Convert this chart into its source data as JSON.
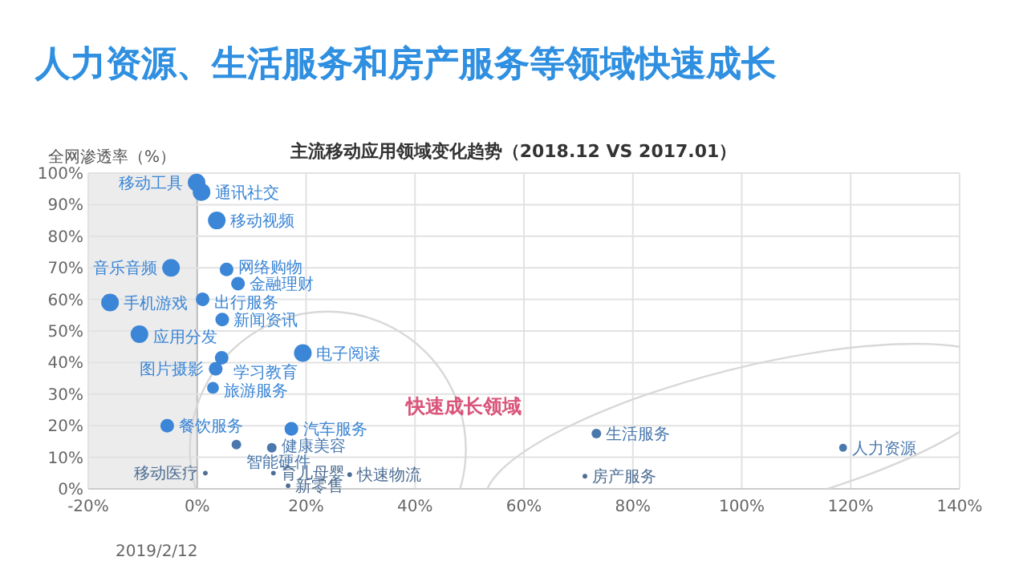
{
  "chart_data": {
    "type": "bubble",
    "title": "人力资源、生活服务和房产服务等领域快速成长",
    "subtitle": "主流移动应用领域变化趋势（2018.12  VS 2017.01）",
    "ylabel": "全网渗透率（%）",
    "xlim": [
      -20,
      140
    ],
    "ylim": [
      0,
      100
    ],
    "xticks": [
      {
        "value": -20,
        "label": "-20%"
      },
      {
        "value": 0,
        "label": "0%"
      },
      {
        "value": 20,
        "label": "20%"
      },
      {
        "value": 40,
        "label": "40%"
      },
      {
        "value": 60,
        "label": "60%"
      },
      {
        "value": 80,
        "label": "80%"
      },
      {
        "value": 100,
        "label": "100%"
      },
      {
        "value": 120,
        "label": "120%"
      },
      {
        "value": 140,
        "label": "140%"
      }
    ],
    "yticks": [
      {
        "value": 0,
        "label": "0%"
      },
      {
        "value": 10,
        "label": "10%"
      },
      {
        "value": 20,
        "label": "20%"
      },
      {
        "value": 30,
        "label": "30%"
      },
      {
        "value": 40,
        "label": "40%"
      },
      {
        "value": 50,
        "label": "50%"
      },
      {
        "value": 60,
        "label": "60%"
      },
      {
        "value": 70,
        "label": "70%"
      },
      {
        "value": 80,
        "label": "80%"
      },
      {
        "value": 90,
        "label": "90%"
      },
      {
        "value": 100,
        "label": "100%"
      }
    ],
    "grid": true,
    "legend": false,
    "marker": "circle",
    "bands": [
      {
        "axis": "x",
        "from": -20,
        "to": 0,
        "color": "#ececec"
      }
    ],
    "annotations": [
      "快速成长领域",
      "2019/2/12"
    ],
    "series": [
      {
        "name": "移动工具",
        "color": "#3b86d6",
        "x": [
          -0.1
        ],
        "values": [
          97
        ],
        "sizes": [
          1
        ]
      },
      {
        "name": "通讯社交",
        "color": "#3b86d6",
        "x": [
          0.8
        ],
        "values": [
          94
        ],
        "sizes": [
          1
        ]
      },
      {
        "name": "移动视频",
        "color": "#3b86d6",
        "x": [
          3.6
        ],
        "values": [
          85
        ],
        "sizes": [
          1
        ]
      },
      {
        "name": "音乐音频",
        "color": "#3b86d6",
        "x": [
          -4.8
        ],
        "values": [
          70
        ],
        "sizes": [
          1
        ]
      },
      {
        "name": "网络购物",
        "color": "#3b86d6",
        "x": [
          5.4
        ],
        "values": [
          69.5
        ],
        "sizes": [
          0.6
        ]
      },
      {
        "name": "金融理财",
        "color": "#3b86d6",
        "x": [
          7.5
        ],
        "values": [
          65
        ],
        "sizes": [
          0.6
        ]
      },
      {
        "name": "出行服务",
        "color": "#3b86d6",
        "x": [
          1.0
        ],
        "values": [
          60
        ],
        "sizes": [
          0.6
        ]
      },
      {
        "name": "手机游戏",
        "color": "#3b86d6",
        "x": [
          -16
        ],
        "values": [
          59
        ],
        "sizes": [
          1
        ]
      },
      {
        "name": "新闻资讯",
        "color": "#3b86d6",
        "x": [
          4.6
        ],
        "values": [
          53.6
        ],
        "sizes": [
          0.6
        ]
      },
      {
        "name": "应用分发",
        "color": "#3b86d6",
        "x": [
          -10.6
        ],
        "values": [
          49
        ],
        "sizes": [
          1
        ]
      },
      {
        "name": "电子阅读",
        "color": "#3b86d6",
        "x": [
          19.4
        ],
        "values": [
          43
        ],
        "sizes": [
          1
        ]
      },
      {
        "name": "学习教育",
        "color": "#3b86d6",
        "x": [
          4.5
        ],
        "values": [
          41.5
        ],
        "sizes": [
          0.6
        ]
      },
      {
        "name": "图片摄影",
        "color": "#3b86d6",
        "x": [
          3.4
        ],
        "values": [
          38
        ],
        "sizes": [
          0.6
        ]
      },
      {
        "name": "旅游服务",
        "color": "#3b86d6",
        "x": [
          2.9
        ],
        "values": [
          32
        ],
        "sizes": [
          0.45
        ]
      },
      {
        "name": "餐饮服务",
        "color": "#3b86d6",
        "x": [
          -5.5
        ],
        "values": [
          20
        ],
        "sizes": [
          0.6
        ]
      },
      {
        "name": "汽车服务",
        "color": "#3b86d6",
        "x": [
          17.3
        ],
        "values": [
          19
        ],
        "sizes": [
          0.6
        ]
      },
      {
        "name": "智能硬件",
        "color": "#4a78ad",
        "x": [
          7.2
        ],
        "values": [
          14
        ],
        "sizes": [
          0.3
        ]
      },
      {
        "name": "健康美容",
        "color": "#4a78ad",
        "x": [
          13.7
        ],
        "values": [
          13
        ],
        "sizes": [
          0.3
        ]
      },
      {
        "name": "移动医疗",
        "color": "#4d6d93",
        "x": [
          1.5
        ],
        "values": [
          5
        ],
        "sizes": [
          0.07
        ]
      },
      {
        "name": "育儿母婴",
        "color": "#4d6d93",
        "x": [
          14
        ],
        "values": [
          5
        ],
        "sizes": [
          0.07
        ]
      },
      {
        "name": "快速物流",
        "color": "#4d6d93",
        "x": [
          28
        ],
        "values": [
          4.5
        ],
        "sizes": [
          0.07
        ]
      },
      {
        "name": "新零售",
        "color": "#4d6d93",
        "x": [
          16.7
        ],
        "values": [
          1
        ],
        "sizes": [
          0.07
        ]
      },
      {
        "name": "生活服务",
        "color": "#4a78ad",
        "x": [
          73.3
        ],
        "values": [
          17.5
        ],
        "sizes": [
          0.3
        ]
      },
      {
        "name": "人力资源",
        "color": "#4a78ad",
        "x": [
          118.6
        ],
        "values": [
          13
        ],
        "sizes": [
          0.2
        ]
      },
      {
        "name": "房产服务",
        "color": "#4d6d93",
        "x": [
          71.2
        ],
        "values": [
          4
        ],
        "sizes": [
          0.07
        ]
      }
    ]
  }
}
